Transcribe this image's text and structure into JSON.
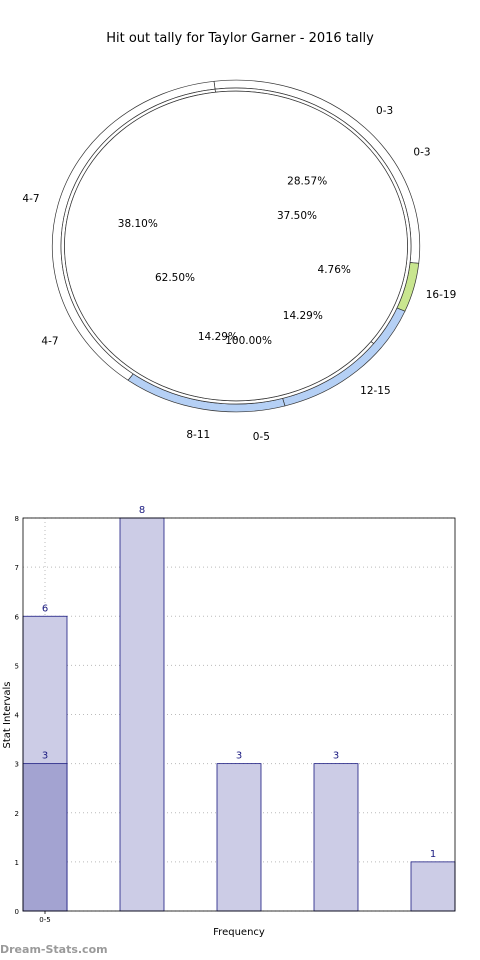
{
  "chart_data": [
    {
      "type": "pie",
      "title": "Hit out tally for Taylor Garner - 2016 tally",
      "rings": [
        {
          "name": "outer",
          "slices": [
            {
              "label": "0-3",
              "value": 6,
              "pct": "28.57%",
              "color": "#ffffff"
            },
            {
              "label": "16-19",
              "value": 1,
              "pct": "4.76%",
              "color": "#c9e68f"
            },
            {
              "label": "12-15",
              "value": 3,
              "pct": "14.29%",
              "color": "#b5d0f5"
            },
            {
              "label": "8-11",
              "value": 3,
              "pct": "14.29%",
              "color": "#b5d0f5"
            },
            {
              "label": "4-7",
              "value": 8,
              "pct": "38.10%",
              "color": "#ffffff"
            }
          ]
        },
        {
          "name": "inner",
          "slices": [
            {
              "label": "0-3",
              "value": 3,
              "pct": "37.50%",
              "color": "#ffffff"
            },
            {
              "label": "4-7",
              "value": 5,
              "pct": "62.50%",
              "color": "#ffffff"
            }
          ]
        },
        {
          "name": "center",
          "slices": [
            {
              "label": "0-5",
              "value": 1,
              "pct": "100.00%",
              "color": "#ffffff"
            }
          ]
        }
      ]
    },
    {
      "type": "bar",
      "xlabel": "Frequency",
      "ylabel": "Stat Intervals",
      "ylim": [
        0,
        8
      ],
      "yticks": [
        "0",
        "1",
        "2",
        "3",
        "4",
        "5",
        "6",
        "7",
        "8"
      ],
      "xticks": [
        "0-5"
      ],
      "grid": true,
      "bars": [
        {
          "value": 6,
          "label": "6",
          "color": "#cccce6"
        },
        {
          "value": 3,
          "label": "3",
          "color": "#a3a3d1"
        },
        {
          "value": 8,
          "label": "8",
          "color": "#cccce6"
        },
        {
          "value": 3,
          "label": "3",
          "color": "#cccce6"
        },
        {
          "value": 3,
          "label": "3",
          "color": "#cccce6"
        },
        {
          "value": 1,
          "label": "1",
          "color": "#cccce6"
        }
      ]
    }
  ],
  "watermark": "Dream-Stats.com"
}
